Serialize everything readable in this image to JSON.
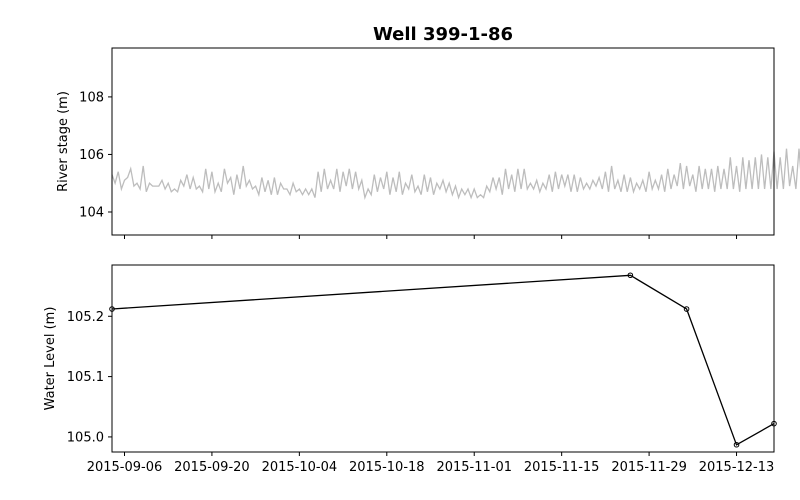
{
  "chart_data": {
    "title": "Well 399-1-86",
    "x_ticks": [
      "2015-09-06",
      "2015-09-20",
      "2015-10-04",
      "2015-10-18",
      "2015-11-01",
      "2015-11-15",
      "2015-11-29",
      "2015-12-13"
    ],
    "x_range": [
      "2015-09-04",
      "2015-12-19"
    ],
    "panels": [
      {
        "type": "line",
        "ylabel": "River stage (m)",
        "ylim": [
          103.2,
          109.7
        ],
        "y_ticks": [
          "104",
          "106",
          "108"
        ],
        "y_tick_values": [
          104,
          106,
          108
        ],
        "series": [
          {
            "color": "#bdbdbd",
            "x_start": "2015-09-04",
            "step_days": 0.5,
            "values": [
              105.3,
              105.0,
              105.4,
              104.8,
              105.1,
              105.2,
              105.5,
              104.9,
              105.0,
              104.8,
              105.6,
              104.7,
              105.0,
              104.9,
              104.9,
              104.9,
              105.1,
              104.8,
              105.0,
              104.7,
              104.8,
              104.7,
              105.1,
              104.9,
              105.3,
              104.8,
              105.2,
              104.8,
              104.9,
              104.7,
              105.5,
              104.8,
              105.4,
              104.7,
              105.0,
              104.7,
              105.5,
              105.0,
              105.2,
              104.6,
              105.3,
              104.8,
              105.6,
              104.9,
              105.1,
              104.8,
              104.9,
              104.6,
              105.2,
              104.7,
              105.1,
              104.6,
              105.2,
              104.6,
              105.0,
              104.8,
              104.8,
              104.6,
              105.0,
              104.7,
              104.8,
              104.6,
              104.8,
              104.6,
              104.8,
              104.5,
              105.4,
              104.7,
              105.5,
              104.8,
              105.1,
              104.8,
              105.5,
              104.7,
              105.4,
              104.9,
              105.5,
              104.8,
              105.4,
              104.8,
              105.1,
              104.5,
              104.8,
              104.6,
              105.3,
              104.7,
              105.2,
              104.8,
              105.4,
              104.6,
              105.2,
              104.7,
              105.4,
              104.6,
              105.0,
              104.8,
              105.3,
              104.7,
              104.9,
              104.6,
              105.3,
              104.7,
              105.2,
              104.6,
              105.0,
              104.8,
              105.1,
              104.7,
              105.0,
              104.6,
              104.9,
              104.5,
              104.8,
              104.6,
              104.8,
              104.5,
              104.8,
              104.5,
              104.6,
              104.5,
              104.9,
              104.7,
              105.2,
              104.8,
              105.2,
              104.6,
              105.5,
              104.8,
              105.3,
              104.7,
              105.5,
              104.8,
              105.5,
              104.8,
              105.0,
              104.8,
              105.1,
              104.7,
              105.0,
              104.8,
              105.3,
              104.7,
              105.4,
              104.8,
              105.3,
              104.9,
              105.3,
              104.7,
              105.3,
              104.7,
              105.2,
              104.8,
              105.0,
              104.8,
              105.1,
              104.9,
              105.2,
              104.8,
              105.4,
              104.7,
              105.6,
              104.8,
              105.1,
              104.7,
              105.3,
              104.7,
              105.2,
              104.7,
              105.0,
              104.8,
              105.1,
              104.7,
              105.4,
              104.8,
              105.1,
              104.8,
              105.3,
              104.7,
              105.5,
              104.8,
              105.3,
              104.9,
              105.7,
              104.8,
              105.6,
              104.9,
              105.3,
              104.7,
              105.6,
              104.8,
              105.5,
              104.8,
              105.5,
              104.7,
              105.6,
              104.8,
              105.5,
              104.8,
              105.9,
              104.8,
              105.6,
              104.7,
              105.9,
              104.8,
              105.8,
              104.8,
              105.9,
              104.8,
              106.0,
              104.8,
              105.9,
              104.8,
              106.1,
              104.8,
              105.9,
              104.8,
              106.2,
              104.9,
              105.6,
              104.8,
              106.2,
              104.8,
              105.9,
              104.9,
              105.7,
              104.9,
              105.3,
              104.9,
              105.4,
              104.9,
              105.3,
              105.0,
              105.4,
              105.0,
              105.4,
              105.1,
              105.7,
              104.9,
              105.3,
              104.9,
              105.0,
              104.9,
              105.5,
              104.9,
              106.0,
              105.2,
              105.4,
              105.0,
              105.3,
              105.0,
              105.2,
              105.0,
              105.5,
              105.0,
              105.2,
              104.9,
              105.2,
              104.9,
              105.2,
              104.8,
              104.9,
              104.8,
              104.8,
              104.8,
              105.1,
              104.8,
              105.4,
              104.9,
              105.2,
              105.0,
              105.5,
              105.0,
              105.4,
              105.0,
              105.4,
              104.9,
              105.0,
              104.8,
              105.0,
              104.8,
              104.9,
              104.8,
              105.2,
              104.9,
              105.0
            ]
          }
        ]
      },
      {
        "type": "line",
        "ylabel": "Water Level (m)",
        "ylim": [
          104.975,
          105.285
        ],
        "y_ticks": [
          "105.0",
          "105.1",
          "105.2"
        ],
        "y_tick_values": [
          105.0,
          105.1,
          105.2
        ],
        "series": [
          {
            "color": "#000000",
            "marker": "circle",
            "points": [
              {
                "x": "2015-09-04",
                "y": 105.212
              },
              {
                "x": "2015-11-26",
                "y": 105.268
              },
              {
                "x": "2015-12-05",
                "y": 105.212
              },
              {
                "x": "2015-12-13",
                "y": 104.987
              },
              {
                "x": "2015-12-19",
                "y": 105.022
              }
            ]
          }
        ]
      }
    ]
  }
}
